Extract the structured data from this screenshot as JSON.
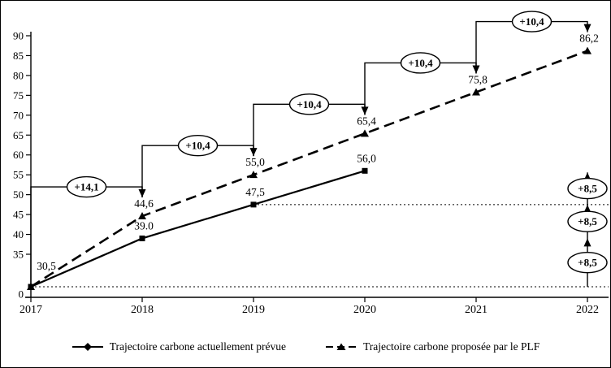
{
  "chart_data": {
    "type": "line",
    "title": "",
    "x_categories": [
      "2017",
      "2018",
      "2019",
      "2020",
      "2021",
      "2022"
    ],
    "y_axis": {
      "tick_labels": [
        "0",
        "35",
        "40",
        "45",
        "50",
        "55",
        "60",
        "65",
        "70",
        "75",
        "80",
        "85",
        "90"
      ],
      "tick_values": [
        0,
        35,
        40,
        45,
        50,
        55,
        60,
        65,
        70,
        75,
        80,
        85,
        90
      ],
      "broken_scale_below": 35
    },
    "series": [
      {
        "name": "Trajectoire carbone actuellement prévue",
        "line_style": "solid",
        "marker": "square",
        "x": [
          "2017",
          "2018",
          "2019",
          "2020"
        ],
        "values": [
          30.5,
          39.0,
          47.5,
          56.0
        ],
        "point_labels": [
          "30,5",
          "39.0",
          "47,5",
          "56,0"
        ]
      },
      {
        "name": "Trajectoire carbone proposée par le PLF",
        "line_style": "dashed",
        "marker": "triangle",
        "x": [
          "2017",
          "2018",
          "2019",
          "2020",
          "2021",
          "2022"
        ],
        "values": [
          30.5,
          44.6,
          55.0,
          65.4,
          75.8,
          86.2
        ],
        "point_labels": [
          "",
          "44,6",
          "55,0",
          "65,4",
          "75,8",
          "86,2"
        ]
      }
    ],
    "step_annotations": [
      {
        "label": "+14,1",
        "from": "2017",
        "to": "2018"
      },
      {
        "label": "+10,4",
        "from": "2018",
        "to": "2019"
      },
      {
        "label": "+10,4",
        "from": "2019",
        "to": "2020"
      },
      {
        "label": "+10,4",
        "from": "2020",
        "to": "2021"
      },
      {
        "label": "+10,4",
        "from": "2021",
        "to": "2022"
      }
    ],
    "right_increment_annotations": {
      "at_x": "2022",
      "base_value": 30.5,
      "step": 8.5,
      "labels": [
        "+8,5",
        "+8,5",
        "+8,5"
      ]
    },
    "dotted_reference_lines": [
      {
        "value": 30.5,
        "from": "2017"
      },
      {
        "value": 47.5,
        "from": "2019"
      }
    ],
    "colors": {
      "ink": "#000000",
      "background": "#ffffff"
    }
  }
}
